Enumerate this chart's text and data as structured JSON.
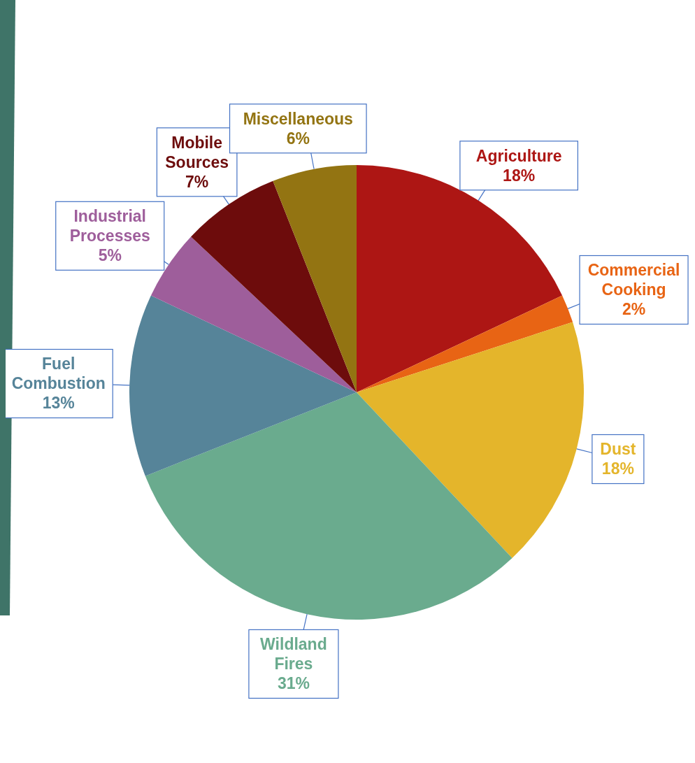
{
  "chart_data": {
    "type": "pie",
    "categories": [
      "Agriculture",
      "Commercial Cooking",
      "Dust",
      "Wildland Fires",
      "Fuel Combustion",
      "Industrial Processes",
      "Mobile Sources",
      "Miscellaneous"
    ],
    "values": [
      18,
      2,
      18,
      31,
      13,
      5,
      7,
      6
    ],
    "value_labels": [
      "18%",
      "2%",
      "18%",
      "31%",
      "13%",
      "5%",
      "7%",
      "6%"
    ],
    "colors": [
      "#ad1614",
      "#e86414",
      "#e4b52b",
      "#6aab8e",
      "#568499",
      "#9e5e9b",
      "#6d0c0c",
      "#937412"
    ],
    "legend": false
  }
}
